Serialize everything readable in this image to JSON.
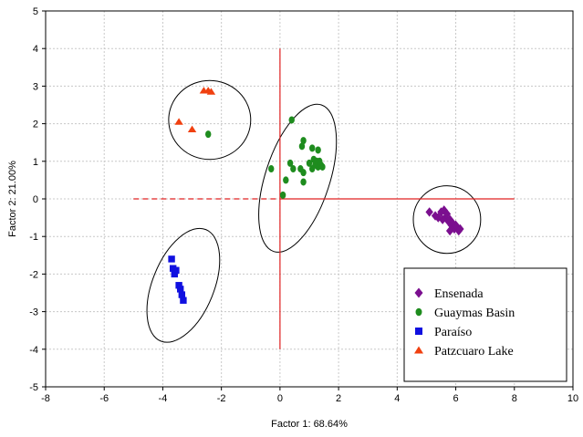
{
  "chart_data": {
    "type": "scatter",
    "xlabel": "Factor 1: 68.64%",
    "ylabel": "Factor 2: 21.00%",
    "xlim": [
      -8,
      10
    ],
    "ylim": [
      -5,
      5
    ],
    "x_ticks": [
      -8,
      -6,
      -4,
      -2,
      0,
      2,
      4,
      6,
      8,
      10
    ],
    "y_ticks": [
      -5,
      -4,
      -3,
      -2,
      -1,
      0,
      1,
      2,
      3,
      4,
      5
    ],
    "grid": true,
    "legend_position": "bottom-right",
    "series": [
      {
        "name": "Ensenada",
        "marker": "diamond",
        "color": "#7B0F8F",
        "points": [
          [
            5.1,
            -0.35
          ],
          [
            5.3,
            -0.45
          ],
          [
            5.5,
            -0.35
          ],
          [
            5.6,
            -0.3
          ],
          [
            5.65,
            -0.5
          ],
          [
            5.7,
            -0.4
          ],
          [
            5.75,
            -0.6
          ],
          [
            5.8,
            -0.55
          ],
          [
            5.85,
            -0.7
          ],
          [
            5.9,
            -0.65
          ],
          [
            5.95,
            -0.8
          ],
          [
            6.0,
            -0.7
          ],
          [
            6.05,
            -0.75
          ],
          [
            6.1,
            -0.85
          ],
          [
            5.8,
            -0.85
          ],
          [
            5.55,
            -0.55
          ],
          [
            6.15,
            -0.8
          ],
          [
            5.4,
            -0.5
          ]
        ]
      },
      {
        "name": "Guaymas Basin",
        "marker": "circle",
        "color": "#1E8C1E",
        "points": [
          [
            0.4,
            2.1
          ],
          [
            0.8,
            1.55
          ],
          [
            0.75,
            1.4
          ],
          [
            1.1,
            1.35
          ],
          [
            1.3,
            1.3
          ],
          [
            0.35,
            0.95
          ],
          [
            1.0,
            0.95
          ],
          [
            1.15,
            1.05
          ],
          [
            1.2,
            0.9
          ],
          [
            1.25,
            1.0
          ],
          [
            1.3,
            0.85
          ],
          [
            1.4,
            0.9
          ],
          [
            1.45,
            0.85
          ],
          [
            1.35,
            1.0
          ],
          [
            0.45,
            0.8
          ],
          [
            0.7,
            0.8
          ],
          [
            0.8,
            0.7
          ],
          [
            1.1,
            0.8
          ],
          [
            0.2,
            0.5
          ],
          [
            0.8,
            0.45
          ],
          [
            -0.3,
            0.8
          ],
          [
            0.1,
            0.1
          ]
        ]
      },
      {
        "name": "Paraíso",
        "marker": "square",
        "color": "#1010E0",
        "points": [
          [
            -3.7,
            -1.6
          ],
          [
            -3.65,
            -1.85
          ],
          [
            -3.6,
            -2.0
          ],
          [
            -3.55,
            -1.9
          ],
          [
            -3.45,
            -2.3
          ],
          [
            -3.4,
            -2.4
          ],
          [
            -3.35,
            -2.55
          ],
          [
            -3.3,
            -2.7
          ]
        ]
      },
      {
        "name": "Patzcuaro Lake",
        "marker": "triangle",
        "color": "#F04010",
        "points": [
          [
            -2.6,
            2.88
          ],
          [
            -2.45,
            2.88
          ],
          [
            -2.35,
            2.85
          ],
          [
            -3.45,
            2.05
          ],
          [
            -3.0,
            1.85
          ]
        ]
      }
    ],
    "extra_points": [
      {
        "series": "Guaymas Basin",
        "x": -2.45,
        "y": 1.72
      }
    ],
    "ellipses": [
      {
        "group": "Ensenada",
        "cx": 5.7,
        "cy": -0.55,
        "rx": 1.15,
        "ry": 0.9,
        "angle": 0
      },
      {
        "group": "Guaymas Basin",
        "cx": 0.6,
        "cy": 0.55,
        "rx": 1.1,
        "ry": 2.05,
        "angle": 18
      },
      {
        "group": "Paraíso",
        "cx": -3.3,
        "cy": -2.3,
        "rx": 1.05,
        "ry": 1.6,
        "angle": 22
      },
      {
        "group": "Patzcuaro Lake",
        "cx": -2.4,
        "cy": 2.1,
        "rx": 1.4,
        "ry": 1.05,
        "angle": 0
      }
    ],
    "reference_lines": [
      {
        "orientation": "vertical",
        "at": 0,
        "from": -4,
        "to": 4,
        "style": "solid",
        "color": "#E02020"
      },
      {
        "orientation": "horizontal",
        "at": 0,
        "from": -5,
        "to": 0,
        "style": "dashed",
        "color": "#E02020"
      },
      {
        "orientation": "horizontal",
        "at": 0,
        "from": 0,
        "to": 8,
        "style": "solid",
        "color": "#E02020"
      }
    ]
  }
}
